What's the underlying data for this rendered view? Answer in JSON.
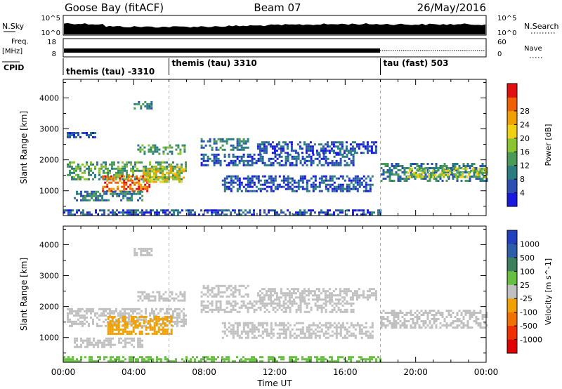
{
  "header": {
    "station": "Goose Bay (fitACF)",
    "beam": "Beam 07",
    "date": "26/May/2016"
  },
  "summary": {
    "nsky_label": "N.Sky",
    "nsky_ticks": [
      "10^5",
      "10^0"
    ],
    "nsearch_label": "N.Search",
    "nsearch_ticks": [
      "10^5",
      "10^0"
    ],
    "freq_label": "Freq.",
    "freq_unit": "[MHz]",
    "freq_ticks": [
      "18",
      "8"
    ],
    "nave_label": "Nave",
    "nave_ticks": [
      "60",
      "0"
    ],
    "cpid_label": "CPID",
    "cpid_segments": [
      {
        "label": "themis (tau) -3310",
        "start_h": 0
      },
      {
        "label": "themis (tau) 3310",
        "start_h": 6
      },
      {
        "label": "tau (fast) 503",
        "start_h": 18
      }
    ]
  },
  "chart_data": [
    {
      "type": "heatmap",
      "name": "power-panel",
      "ylabel": "Slant Range [km]",
      "xlabel": "",
      "x_range_h": [
        0,
        24
      ],
      "ylim": [
        200,
        4600
      ],
      "yticks": [
        1000,
        2000,
        3000,
        4000
      ],
      "colorbar": {
        "label": "Power [dB]",
        "ticks": [
          "4",
          "8",
          "12",
          "16",
          "20",
          "24",
          "28"
        ],
        "colors": [
          "#1818e0",
          "#2a4fb0",
          "#2a7c80",
          "#4a9a58",
          "#8cc430",
          "#f0d010",
          "#f0a000",
          "#f06000",
          "#e01010"
        ]
      },
      "echo_regions": [
        {
          "t0": 0.2,
          "t1": 6.9,
          "r0": 1350,
          "r1": 1950,
          "level": 3
        },
        {
          "t0": 2.2,
          "t1": 4.9,
          "r0": 1000,
          "r1": 1500,
          "level": 7
        },
        {
          "t0": 4.5,
          "t1": 6.8,
          "r0": 1300,
          "r1": 1800,
          "level": 5
        },
        {
          "t0": 0.6,
          "t1": 4.5,
          "r0": 700,
          "r1": 1000,
          "level": 2
        },
        {
          "t0": 4.2,
          "t1": 6.9,
          "r0": 2200,
          "r1": 2500,
          "level": 3
        },
        {
          "t0": 0.2,
          "t1": 1.8,
          "r0": 2700,
          "r1": 2900,
          "level": 1
        },
        {
          "t0": 4.0,
          "t1": 5.0,
          "r0": 3650,
          "r1": 3900,
          "level": 2
        },
        {
          "t0": 7.8,
          "t1": 16.5,
          "r0": 1800,
          "r1": 2200,
          "level": 1
        },
        {
          "t0": 7.8,
          "t1": 10.5,
          "r0": 2300,
          "r1": 2700,
          "level": 2
        },
        {
          "t0": 9.0,
          "t1": 17.5,
          "r0": 1000,
          "r1": 1500,
          "level": 1
        },
        {
          "t0": 11.0,
          "t1": 17.8,
          "r0": 2200,
          "r1": 2600,
          "level": 1
        },
        {
          "t0": 18.0,
          "t1": 24.0,
          "r0": 1300,
          "r1": 1900,
          "level": 2
        },
        {
          "t0": 19.5,
          "t1": 24.0,
          "r0": 1450,
          "r1": 1750,
          "level": 4
        },
        {
          "t0": 0.0,
          "t1": 18.0,
          "r0": 250,
          "r1": 400,
          "level": 1
        }
      ]
    },
    {
      "type": "heatmap",
      "name": "velocity-panel",
      "ylabel": "Slant Range [km]",
      "xlabel": "Time UT",
      "x_range_h": [
        0,
        24
      ],
      "xticks": [
        "00:00",
        "04:00",
        "08:00",
        "12:00",
        "16:00",
        "20:00",
        "00:00"
      ],
      "ylim": [
        200,
        4600
      ],
      "yticks": [
        1000,
        2000,
        3000,
        4000
      ],
      "colorbar": {
        "label": "Velocity [m s^-1]",
        "ticks": [
          "1000",
          "500",
          "100",
          "25",
          "-25",
          "-100",
          "-500",
          "-1000"
        ],
        "colors": [
          "#2040c0",
          "#2e5ea8",
          "#3c8060",
          "#66c040",
          "#c0c0c0",
          "#f0a000",
          "#f07000",
          "#f03000",
          "#e00000"
        ]
      },
      "echo_regions": [
        {
          "t0": 0.2,
          "t1": 6.9,
          "r0": 1350,
          "r1": 1950,
          "color": "#c0c0c0"
        },
        {
          "t0": 2.5,
          "t1": 6.2,
          "r0": 1150,
          "r1": 1700,
          "color": "#f0a000"
        },
        {
          "t0": 0.6,
          "t1": 4.5,
          "r0": 700,
          "r1": 1000,
          "color": "#c0c0c0"
        },
        {
          "t0": 4.2,
          "t1": 6.9,
          "r0": 2200,
          "r1": 2500,
          "color": "#c0c0c0"
        },
        {
          "t0": 4.0,
          "t1": 5.0,
          "r0": 3650,
          "r1": 3900,
          "color": "#c0c0c0"
        },
        {
          "t0": 7.8,
          "t1": 16.5,
          "r0": 1800,
          "r1": 2200,
          "color": "#c0c0c0"
        },
        {
          "t0": 7.8,
          "t1": 10.5,
          "r0": 2300,
          "r1": 2700,
          "color": "#c0c0c0"
        },
        {
          "t0": 9.0,
          "t1": 17.5,
          "r0": 1000,
          "r1": 1500,
          "color": "#c0c0c0"
        },
        {
          "t0": 11.0,
          "t1": 17.8,
          "r0": 2200,
          "r1": 2600,
          "color": "#c0c0c0"
        },
        {
          "t0": 18.0,
          "t1": 24.0,
          "r0": 1300,
          "r1": 1900,
          "color": "#c0c0c0"
        },
        {
          "t0": 0.0,
          "t1": 18.0,
          "r0": 250,
          "r1": 400,
          "color": "#66c040"
        }
      ]
    }
  ]
}
